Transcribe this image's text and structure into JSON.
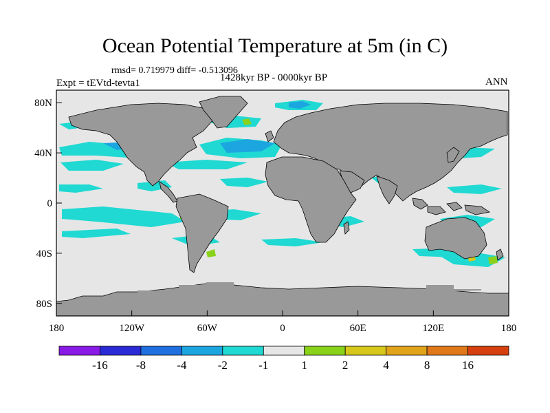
{
  "title": "Ocean Potential Temperature at 5m (in C)",
  "stats": "rmsd= 0.719979 diff= -0.513096",
  "experiment": "Expt = tEVtd-tevta1",
  "period": "1428kyr BP - 0000kyr BP",
  "season": "ANN",
  "axes": {
    "x_ticks": [
      {
        "value": -180,
        "label": "180"
      },
      {
        "value": -120,
        "label": "120W"
      },
      {
        "value": -60,
        "label": "60W"
      },
      {
        "value": 0,
        "label": "0"
      },
      {
        "value": 60,
        "label": "60E"
      },
      {
        "value": 120,
        "label": "120E"
      },
      {
        "value": 180,
        "label": "180"
      }
    ],
    "y_ticks": [
      {
        "value": 80,
        "label": "80N"
      },
      {
        "value": 40,
        "label": "40N"
      },
      {
        "value": 0,
        "label": "0"
      },
      {
        "value": -40,
        "label": "40S"
      },
      {
        "value": -80,
        "label": "80S"
      }
    ],
    "xlim": [
      -180,
      180
    ],
    "ylim": [
      -90,
      90
    ]
  },
  "colorbar": {
    "colors": [
      "#8a1ae6",
      "#2a2ad6",
      "#1f6fe0",
      "#1ca6e0",
      "#1fd9d2",
      "#e6e6e6",
      "#8ad21a",
      "#d6c81a",
      "#e0a31a",
      "#e0781a",
      "#d6400f"
    ],
    "labels": [
      "-16",
      "-8",
      "-4",
      "-2",
      "-1",
      "1",
      "2",
      "4",
      "8",
      "16"
    ]
  },
  "map_colors": {
    "ocean": "#e6e6e6",
    "land": "#999999",
    "cool": "#1fd9d2",
    "colder": "#1ca6e0",
    "warm": "#8ad21a",
    "warmer": "#d6c81a"
  }
}
